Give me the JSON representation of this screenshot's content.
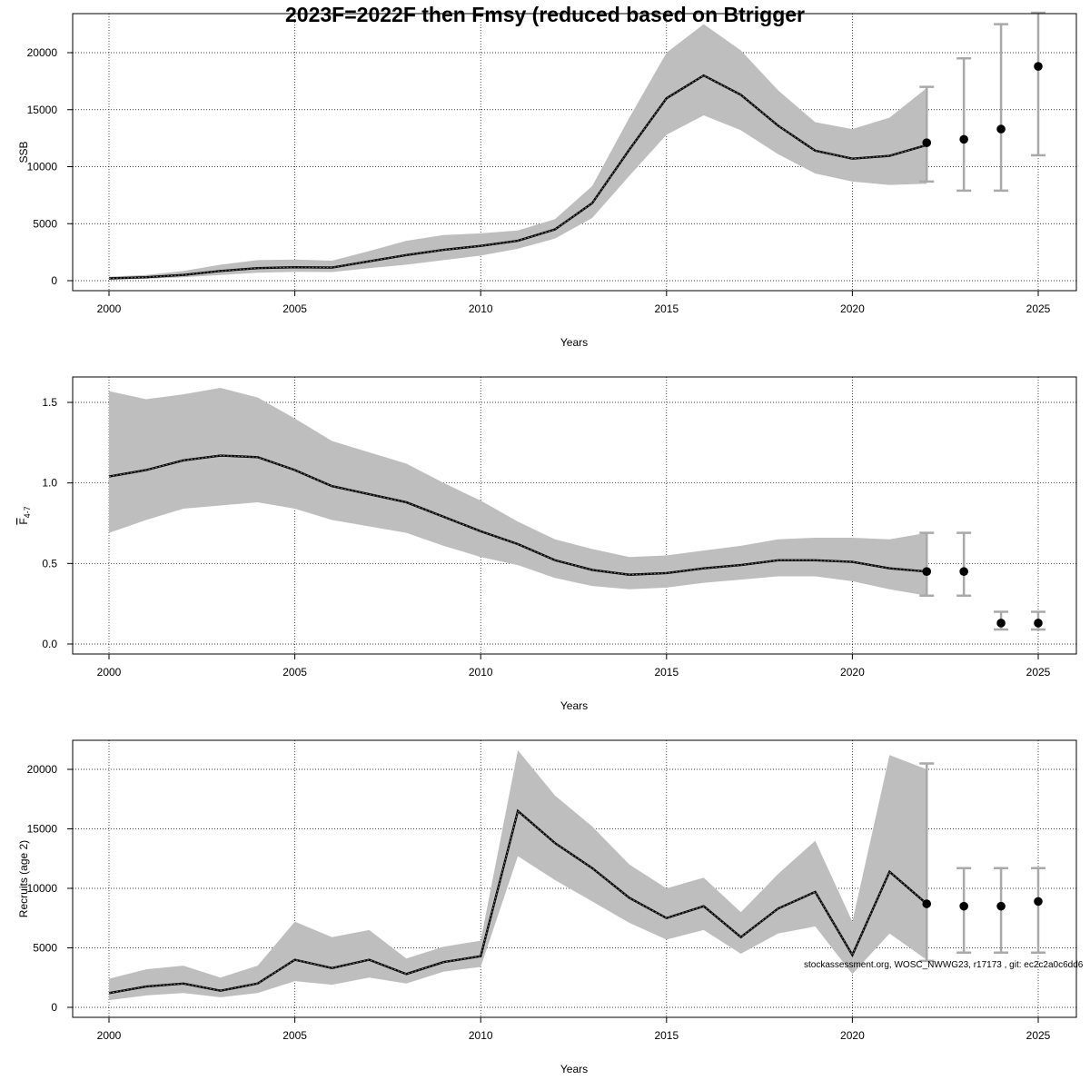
{
  "title": "2023F=2022F then Fmsy (reduced based on Btrigger",
  "footnote": "stockassessment.org, WOSC_NWWG23, r17173 , git: ec2c2a0c6dd6",
  "colors": {
    "band": "#bebebe",
    "line": "#000000",
    "errorbar": "#a9a9a9",
    "grid": "#000000"
  },
  "chart_data": [
    {
      "type": "line",
      "ylabel": "SSB",
      "xlabel": "Years",
      "xlim": [
        2000,
        2025
      ],
      "ylim": [
        0,
        22500
      ],
      "xticks": [
        "2000",
        "2005",
        "2010",
        "2015",
        "2020",
        "2025"
      ],
      "yticks": [
        "0",
        "5000",
        "10000",
        "15000",
        "20000"
      ],
      "grid": true,
      "years": [
        2000,
        2001,
        2002,
        2003,
        2004,
        2005,
        2006,
        2007,
        2008,
        2009,
        2010,
        2011,
        2012,
        2013,
        2014,
        2015,
        2016,
        2017,
        2018,
        2019,
        2020,
        2021,
        2022
      ],
      "estimate": [
        200,
        300,
        500,
        850,
        1100,
        1180,
        1150,
        1700,
        2250,
        2700,
        3050,
        3500,
        4500,
        6800,
        11500,
        16000,
        18000,
        16300,
        13600,
        11400,
        10700,
        10950,
        11900
      ],
      "lower": [
        100,
        170,
        300,
        500,
        700,
        780,
        760,
        1100,
        1400,
        1800,
        2200,
        2800,
        3700,
        5500,
        9200,
        12800,
        14500,
        13200,
        11100,
        9400,
        8700,
        8400,
        8500
      ],
      "upper": [
        350,
        500,
        850,
        1400,
        1800,
        1850,
        1750,
        2600,
        3500,
        4000,
        4150,
        4400,
        5400,
        8300,
        14300,
        20000,
        22500,
        20200,
        16700,
        13900,
        13300,
        14300,
        16900
      ],
      "forecast": [
        {
          "year": 2022,
          "value": 12100,
          "low": 8700,
          "high": 17000
        },
        {
          "year": 2023,
          "value": 12400,
          "low": 7900,
          "high": 19500
        },
        {
          "year": 2024,
          "value": 13300,
          "low": 7900,
          "high": 22500
        },
        {
          "year": 2025,
          "value": 18800,
          "low": 11000,
          "high": 23500
        }
      ]
    },
    {
      "type": "line",
      "ylabel": "F4-7",
      "xlabel": "Years",
      "xlim": [
        2000,
        2025
      ],
      "ylim": [
        0,
        1.6
      ],
      "xticks": [
        "2000",
        "2005",
        "2010",
        "2015",
        "2020",
        "2025"
      ],
      "yticks": [
        "0.0",
        "0.5",
        "1.0",
        "1.5"
      ],
      "grid": true,
      "years": [
        2000,
        2001,
        2002,
        2003,
        2004,
        2005,
        2006,
        2007,
        2008,
        2009,
        2010,
        2011,
        2012,
        2013,
        2014,
        2015,
        2016,
        2017,
        2018,
        2019,
        2020,
        2021,
        2022
      ],
      "estimate": [
        1.04,
        1.08,
        1.14,
        1.17,
        1.16,
        1.08,
        0.98,
        0.93,
        0.88,
        0.79,
        0.7,
        0.62,
        0.52,
        0.46,
        0.43,
        0.44,
        0.47,
        0.49,
        0.52,
        0.52,
        0.51,
        0.47,
        0.45
      ],
      "lower": [
        0.69,
        0.77,
        0.84,
        0.86,
        0.88,
        0.84,
        0.77,
        0.73,
        0.69,
        0.61,
        0.54,
        0.49,
        0.41,
        0.36,
        0.34,
        0.35,
        0.38,
        0.4,
        0.42,
        0.42,
        0.39,
        0.34,
        0.3
      ],
      "upper": [
        1.57,
        1.52,
        1.55,
        1.59,
        1.53,
        1.4,
        1.26,
        1.19,
        1.12,
        1.0,
        0.89,
        0.76,
        0.65,
        0.59,
        0.54,
        0.55,
        0.58,
        0.61,
        0.65,
        0.66,
        0.66,
        0.65,
        0.69
      ],
      "forecast": [
        {
          "year": 2022,
          "value": 0.45,
          "low": 0.3,
          "high": 0.69
        },
        {
          "year": 2023,
          "value": 0.45,
          "low": 0.3,
          "high": 0.69
        },
        {
          "year": 2024,
          "value": 0.13,
          "low": 0.09,
          "high": 0.2
        },
        {
          "year": 2025,
          "value": 0.13,
          "low": 0.09,
          "high": 0.2
        }
      ]
    },
    {
      "type": "line",
      "ylabel": "Recruits (age 2)",
      "xlabel": "Years",
      "xlim": [
        2000,
        2025
      ],
      "ylim": [
        0,
        21500
      ],
      "xticks": [
        "2000",
        "2005",
        "2010",
        "2015",
        "2020",
        "2025"
      ],
      "yticks": [
        "0",
        "5000",
        "10000",
        "15000",
        "20000"
      ],
      "grid": true,
      "years": [
        2000,
        2001,
        2002,
        2003,
        2004,
        2005,
        2006,
        2007,
        2008,
        2009,
        2010,
        2011,
        2012,
        2013,
        2014,
        2015,
        2016,
        2017,
        2018,
        2019,
        2020,
        2021,
        2022
      ],
      "estimate": [
        1200,
        1750,
        2000,
        1400,
        2000,
        4000,
        3300,
        4000,
        2800,
        3800,
        4300,
        16500,
        13800,
        11700,
        9200,
        7500,
        8500,
        5900,
        8300,
        9700,
        4400,
        11400,
        8700
      ],
      "lower": [
        600,
        1000,
        1200,
        850,
        1200,
        2200,
        1900,
        2500,
        2000,
        3000,
        3400,
        12700,
        10700,
        8900,
        7100,
        5700,
        6500,
        4500,
        6200,
        6800,
        2800,
        6200,
        4000
      ],
      "upper": [
        2400,
        3200,
        3500,
        2500,
        3500,
        7200,
        5900,
        6500,
        4100,
        5100,
        5600,
        21600,
        17800,
        15200,
        12000,
        10000,
        10900,
        8000,
        11200,
        14000,
        7200,
        21200,
        20000
      ],
      "forecast": [
        {
          "year": 2022,
          "value": 8700,
          "low": 3900,
          "high": 20500
        },
        {
          "year": 2023,
          "value": 8500,
          "low": 4600,
          "high": 11700
        },
        {
          "year": 2024,
          "value": 8500,
          "low": 4600,
          "high": 11700
        },
        {
          "year": 2025,
          "value": 8900,
          "low": 4600,
          "high": 11700
        }
      ]
    }
  ]
}
